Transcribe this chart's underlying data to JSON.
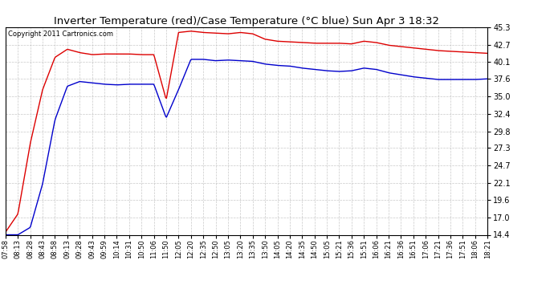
{
  "title": "Inverter Temperature (red)/Case Temperature (°C blue) Sun Apr 3 18:32",
  "copyright": "Copyright 2011 Cartronics.com",
  "ylim": [
    14.4,
    45.3
  ],
  "yticks": [
    14.4,
    17.0,
    19.6,
    22.1,
    24.7,
    27.3,
    29.8,
    32.4,
    35.0,
    37.6,
    40.1,
    42.7,
    45.3
  ],
  "background_color": "#ffffff",
  "plot_bg_color": "#ffffff",
  "grid_color": "#bbbbbb",
  "red_color": "#dd0000",
  "blue_color": "#0000cc",
  "x_labels": [
    "07:58",
    "08:13",
    "08:28",
    "08:43",
    "08:58",
    "09:13",
    "09:28",
    "09:43",
    "09:59",
    "10:14",
    "10:31",
    "10:50",
    "11:06",
    "11:50",
    "12:05",
    "12:20",
    "12:35",
    "12:50",
    "13:05",
    "13:20",
    "13:35",
    "13:50",
    "14:05",
    "14:20",
    "14:35",
    "14:50",
    "15:05",
    "15:21",
    "15:36",
    "15:51",
    "16:06",
    "16:21",
    "16:36",
    "16:51",
    "17:06",
    "17:21",
    "17:36",
    "17:51",
    "18:06",
    "18:21"
  ],
  "red_data": [
    14.8,
    17.5,
    28.0,
    36.0,
    40.8,
    42.0,
    41.5,
    41.2,
    41.3,
    41.3,
    41.3,
    41.2,
    41.2,
    34.5,
    44.5,
    44.7,
    44.5,
    44.4,
    44.3,
    44.5,
    44.3,
    43.5,
    43.2,
    43.1,
    43.0,
    42.9,
    42.9,
    42.9,
    42.8,
    43.2,
    43.0,
    42.6,
    42.4,
    42.2,
    42.0,
    41.8,
    41.7,
    41.6,
    41.5,
    41.4
  ],
  "blue_data": [
    14.4,
    14.4,
    15.5,
    22.0,
    31.5,
    36.5,
    37.2,
    37.0,
    36.8,
    36.7,
    36.8,
    36.8,
    36.8,
    31.8,
    36.0,
    40.5,
    40.5,
    40.3,
    40.4,
    40.3,
    40.2,
    39.8,
    39.6,
    39.5,
    39.2,
    39.0,
    38.8,
    38.7,
    38.8,
    39.2,
    39.0,
    38.5,
    38.2,
    37.9,
    37.7,
    37.5,
    37.5,
    37.5,
    37.5,
    37.6
  ],
  "figsize": [
    6.9,
    3.75
  ],
  "dpi": 100
}
